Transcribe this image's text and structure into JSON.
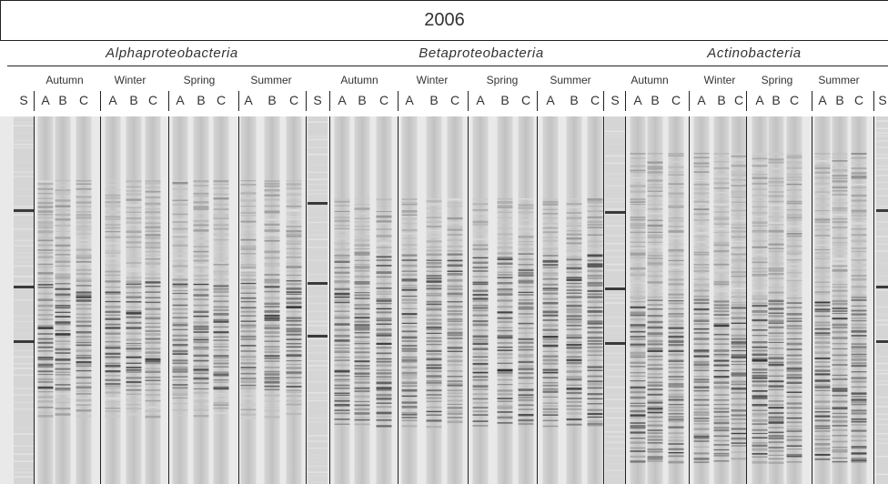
{
  "title": "2006",
  "groups": [
    {
      "name": "Alphaproteobacteria"
    },
    {
      "name": "Betaproteobacteria"
    },
    {
      "name": "Actinobacteria"
    }
  ],
  "seasons": [
    "Autumn",
    "Winter",
    "Spring",
    "Summer"
  ],
  "lane_letters": [
    "A",
    "B",
    "C"
  ],
  "standard_label": "S"
}
